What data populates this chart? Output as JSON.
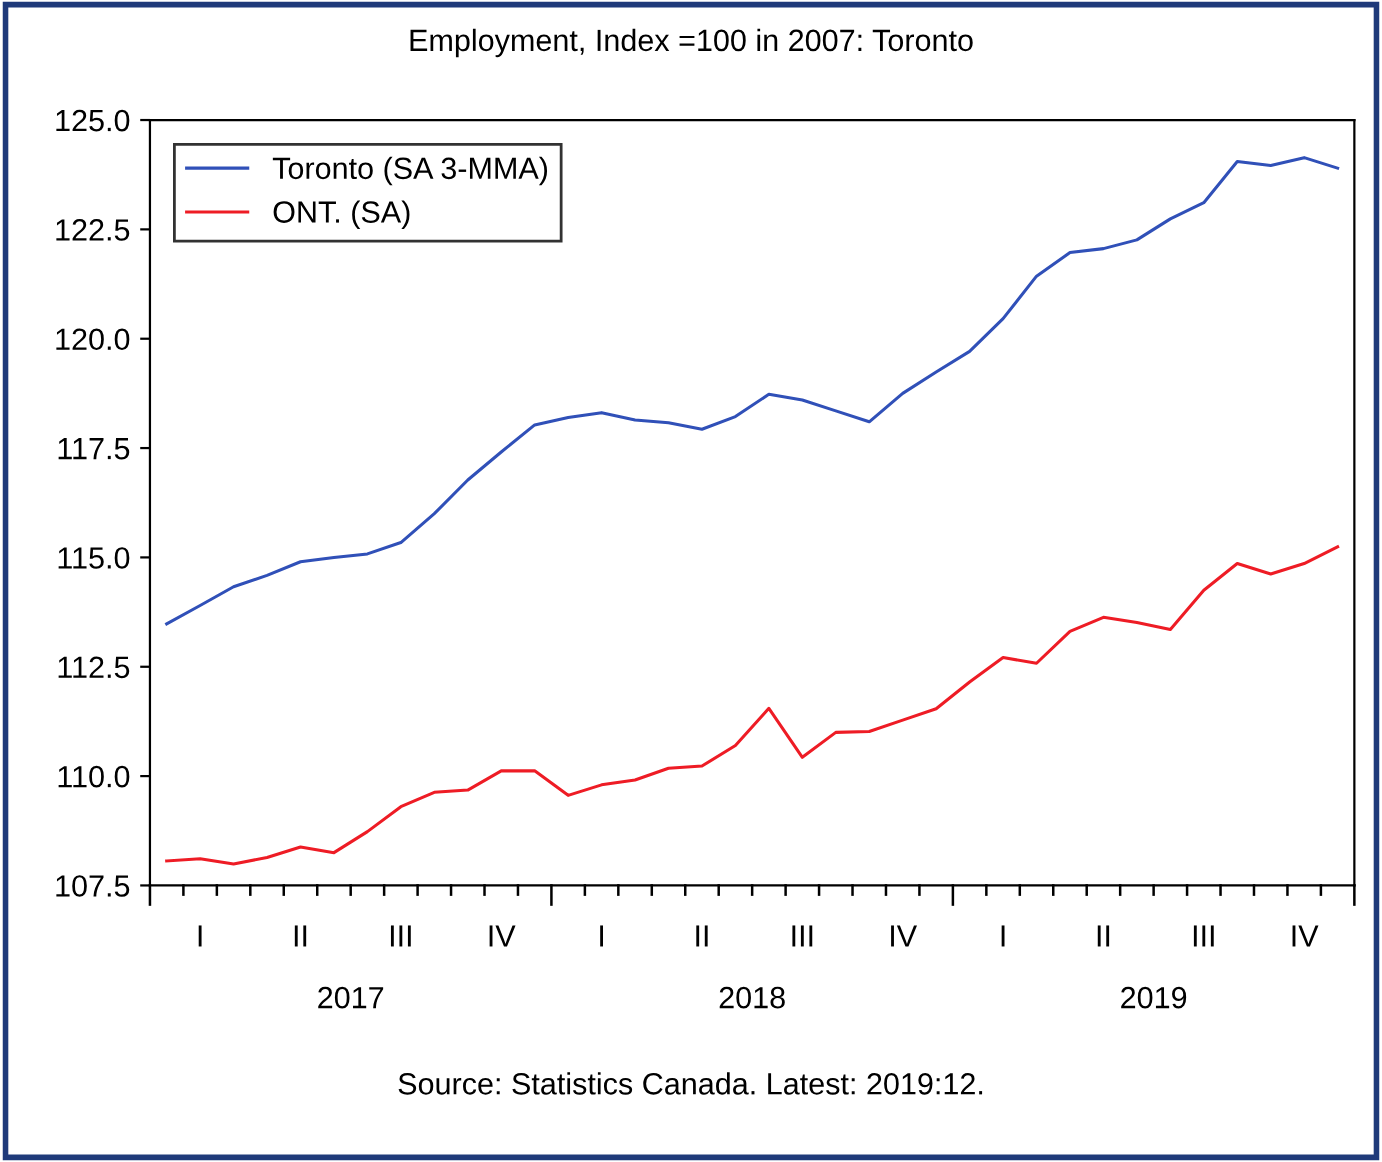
{
  "chart_data": {
    "type": "line",
    "title": "Employment, Index =100 in 2007: Toronto",
    "categories": [
      null,
      "I",
      null,
      null,
      "II",
      null,
      null,
      "III",
      null,
      null,
      "IV",
      null,
      null,
      "I",
      null,
      null,
      "II",
      null,
      null,
      "III",
      null,
      null,
      "IV",
      null,
      null,
      "I",
      null,
      null,
      "II",
      null,
      null,
      "III",
      null,
      null,
      "IV",
      null
    ],
    "series": [
      {
        "name": "Toronto (SA 3-MMA)",
        "color": "#3050b8",
        "values": [
          113.48,
          113.9,
          114.33,
          114.59,
          114.9,
          115.0,
          115.08,
          115.34,
          116.0,
          116.77,
          117.41,
          118.03,
          118.2,
          118.31,
          118.14,
          118.08,
          117.93,
          118.22,
          118.73,
          118.6,
          118.35,
          118.1,
          118.75,
          119.24,
          119.71,
          120.46,
          121.43,
          121.97,
          122.06,
          122.26,
          122.74,
          123.11,
          124.05,
          123.96,
          124.14,
          123.9
        ]
      },
      {
        "name": "ONT. (SA)",
        "color": "#ee1c25",
        "values": [
          108.06,
          108.11,
          107.99,
          108.14,
          108.38,
          108.25,
          108.73,
          109.3,
          109.63,
          109.68,
          110.12,
          110.12,
          109.56,
          109.8,
          109.91,
          110.18,
          110.23,
          110.7,
          111.55,
          110.43,
          111.0,
          111.02,
          111.28,
          111.54,
          112.15,
          112.71,
          112.58,
          113.31,
          113.63,
          113.51,
          113.35,
          114.25,
          114.86,
          114.62,
          114.86,
          115.24
        ]
      }
    ],
    "ylim": [
      107.5,
      125.0
    ],
    "yticks": [
      {
        "value": 107.5,
        "label": "107.5"
      },
      {
        "value": 110,
        "label": "110.0"
      },
      {
        "value": 112.5,
        "label": "112.5"
      },
      {
        "value": 115,
        "label": "115.0"
      },
      {
        "value": 117.5,
        "label": "117.5"
      },
      {
        "value": 120,
        "label": "120.0"
      },
      {
        "value": 122.5,
        "label": "122.5"
      },
      {
        "value": 125,
        "label": "125.0"
      }
    ],
    "annotations": [
      "2017",
      "2018",
      "2019",
      "Source: Statistics Canada. Latest: 2019:12."
    ],
    "legend": "top left",
    "grid": false,
    "marker": "none",
    "line_style": "solid"
  }
}
